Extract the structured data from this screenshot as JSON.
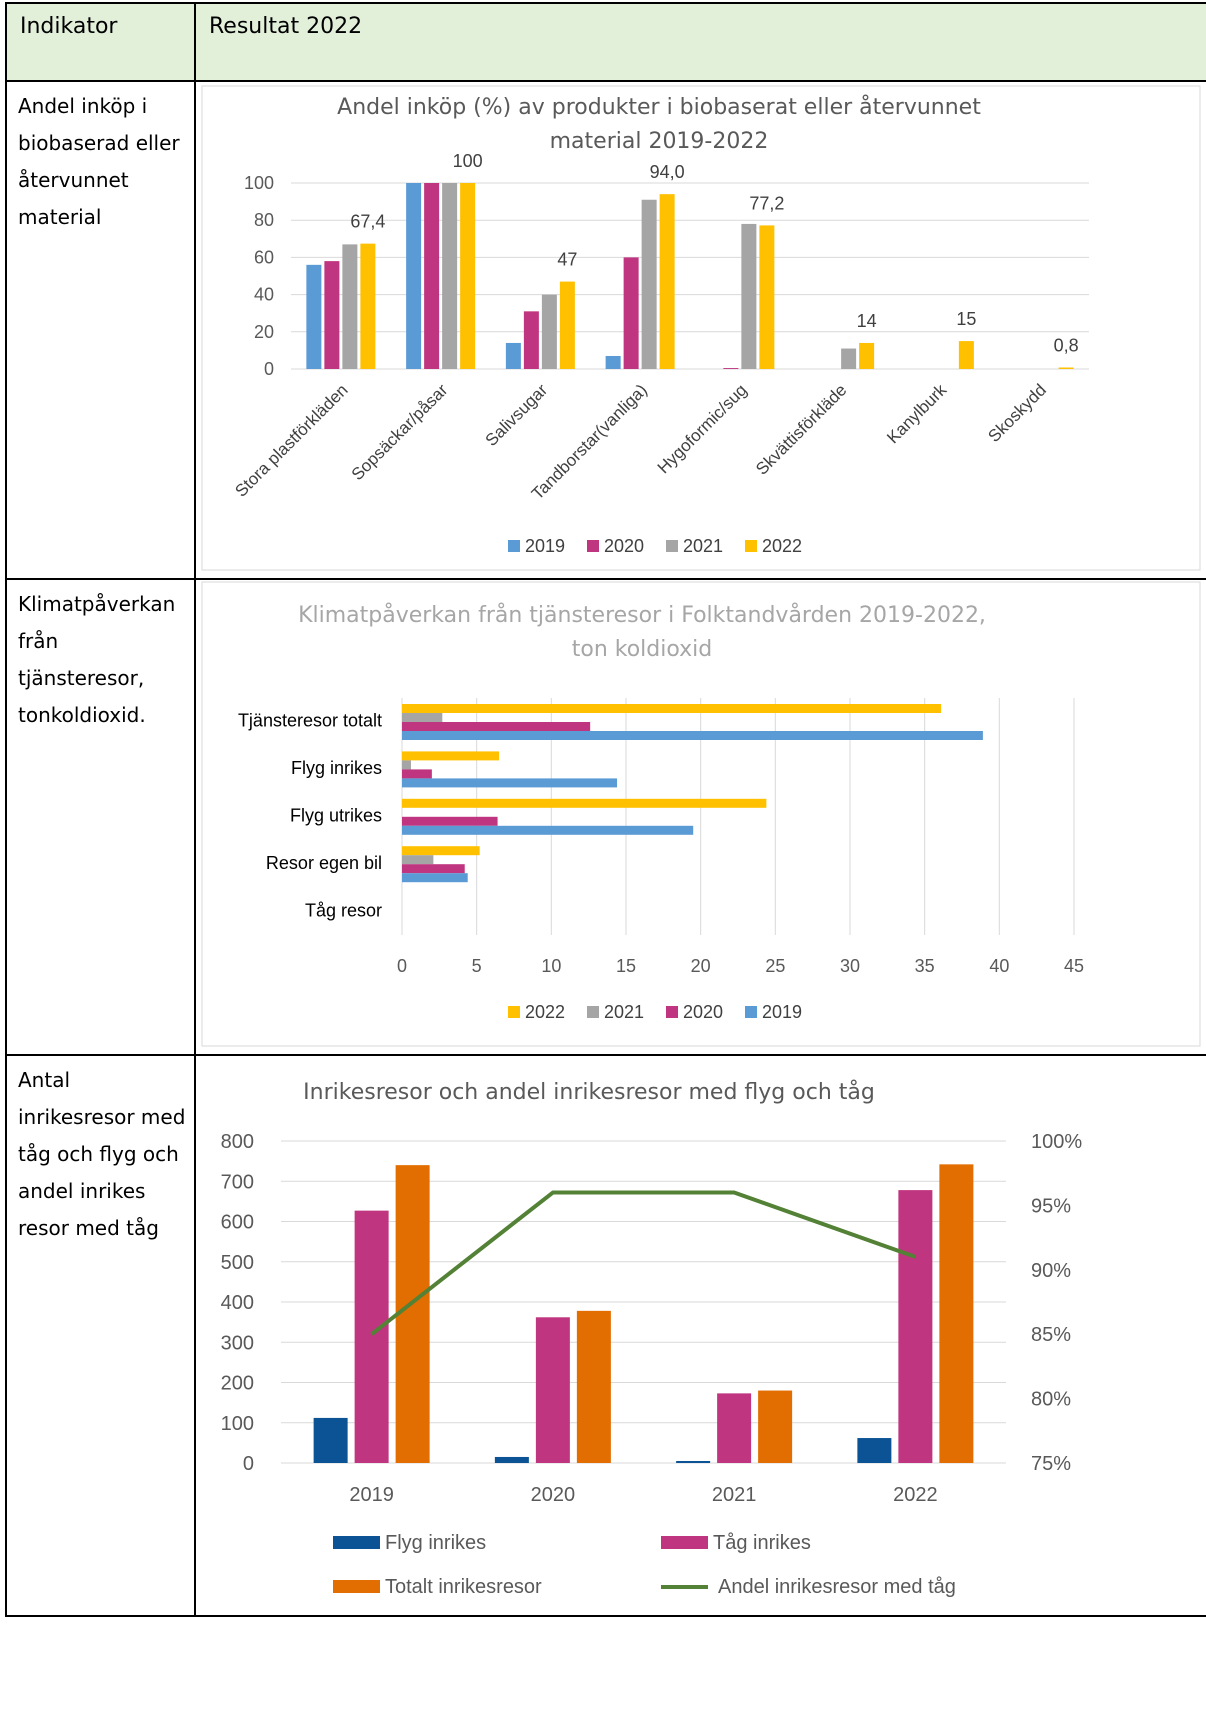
{
  "header": {
    "indikator": "Indikator",
    "resultat": "Resultat 2022"
  },
  "rows": [
    {
      "label_lines": [
        "Andel inköp i",
        "biobaserad eller",
        "återvunnet",
        "material"
      ]
    },
    {
      "label_lines": [
        "Klimatpåverkan",
        "från tjänsteresor,",
        "tonkoldioxid."
      ]
    },
    {
      "label_lines": [
        "Antal",
        "inrikesresor med",
        "tåg och flyg och",
        "andel inrikes",
        "resor med tåg"
      ]
    }
  ],
  "chart_data": [
    {
      "type": "bar",
      "title_lines": [
        "Andel inköp (%) av produkter i biobaserat eller återvunnet",
        "material 2019-2022"
      ],
      "categories": [
        "Stora plastförkläden",
        "Sopsäckar/påsar",
        "Salivsugar",
        "Tandborstar(vanliga)",
        "Hygoformic/sug",
        "Skvättisförkläde",
        "Kanylburk",
        "Skoskydd"
      ],
      "series": [
        {
          "name": "2019",
          "color": "#5b9bd5",
          "values": [
            56,
            100,
            14,
            7,
            0,
            0,
            0,
            0
          ]
        },
        {
          "name": "2020",
          "color": "#c0357f",
          "values": [
            58,
            100,
            31,
            60,
            0.5,
            0,
            0,
            0
          ]
        },
        {
          "name": "2021",
          "color": "#a5a5a5",
          "values": [
            67,
            100,
            40,
            91,
            78,
            11,
            0,
            0
          ]
        },
        {
          "name": "2022",
          "color": "#ffc000",
          "values": [
            67.4,
            100,
            47,
            94.0,
            77.2,
            14,
            15,
            0.8
          ]
        }
      ],
      "data_labels": [
        "67,4",
        "100",
        "47",
        "94,0",
        "77,2",
        "14",
        "15",
        "0,8"
      ],
      "y_ticks": [
        "0",
        "20",
        "40",
        "60",
        "80",
        "100"
      ],
      "ylim": [
        0,
        100
      ],
      "grid": true,
      "legend": "bottom"
    },
    {
      "type": "bar",
      "orientation": "horizontal",
      "title_lines": [
        "Klimatpåverkan från tjänsteresor i Folktandvården 2019-2022,",
        "ton koldioxid"
      ],
      "categories": [
        "Tjänsteresor totalt",
        "Flyg inrikes",
        "Flyg utrikes",
        "Resor egen bil",
        "Tåg resor"
      ],
      "series": [
        {
          "name": "2022",
          "color": "#ffc000",
          "values": [
            36.1,
            6.5,
            24.4,
            5.2,
            0
          ]
        },
        {
          "name": "2021",
          "color": "#a5a5a5",
          "values": [
            2.7,
            0.6,
            0,
            2.1,
            0
          ]
        },
        {
          "name": "2020",
          "color": "#c0357f",
          "values": [
            12.6,
            2.0,
            6.4,
            4.2,
            0
          ]
        },
        {
          "name": "2019",
          "color": "#5b9bd5",
          "values": [
            38.9,
            14.4,
            19.5,
            4.4,
            0
          ]
        }
      ],
      "x_ticks": [
        "0",
        "5",
        "10",
        "15",
        "20",
        "25",
        "30",
        "35",
        "40",
        "45"
      ],
      "xlim": [
        0,
        45
      ],
      "grid": true,
      "legend": "bottom"
    },
    {
      "type": "bar",
      "combo": "bar+line",
      "title": "Inrikesresor och andel inrikesresor med flyg och tåg",
      "categories": [
        "2019",
        "2020",
        "2021",
        "2022"
      ],
      "series": [
        {
          "name": "Flyg inrikes",
          "color": "#0b5394",
          "values": [
            112,
            15,
            5,
            62
          ]
        },
        {
          "name": "Tåg inrikes",
          "color": "#c0357f",
          "values": [
            627,
            362,
            173,
            678
          ]
        },
        {
          "name": "Totalt inrikesresor",
          "color": "#e26d00",
          "values": [
            740,
            378,
            180,
            742
          ]
        }
      ],
      "line_series": {
        "name": "Andel inrikesresor med tåg",
        "color": "#538135",
        "values": [
          85,
          96,
          96,
          91
        ]
      },
      "y_ticks": [
        "0",
        "100",
        "200",
        "300",
        "400",
        "500",
        "600",
        "700",
        "800"
      ],
      "ylim": [
        0,
        800
      ],
      "y2_ticks": [
        "75%",
        "80%",
        "85%",
        "90%",
        "95%",
        "100%"
      ],
      "y2lim": [
        75,
        100
      ],
      "grid": true,
      "legend": "bottom"
    }
  ]
}
